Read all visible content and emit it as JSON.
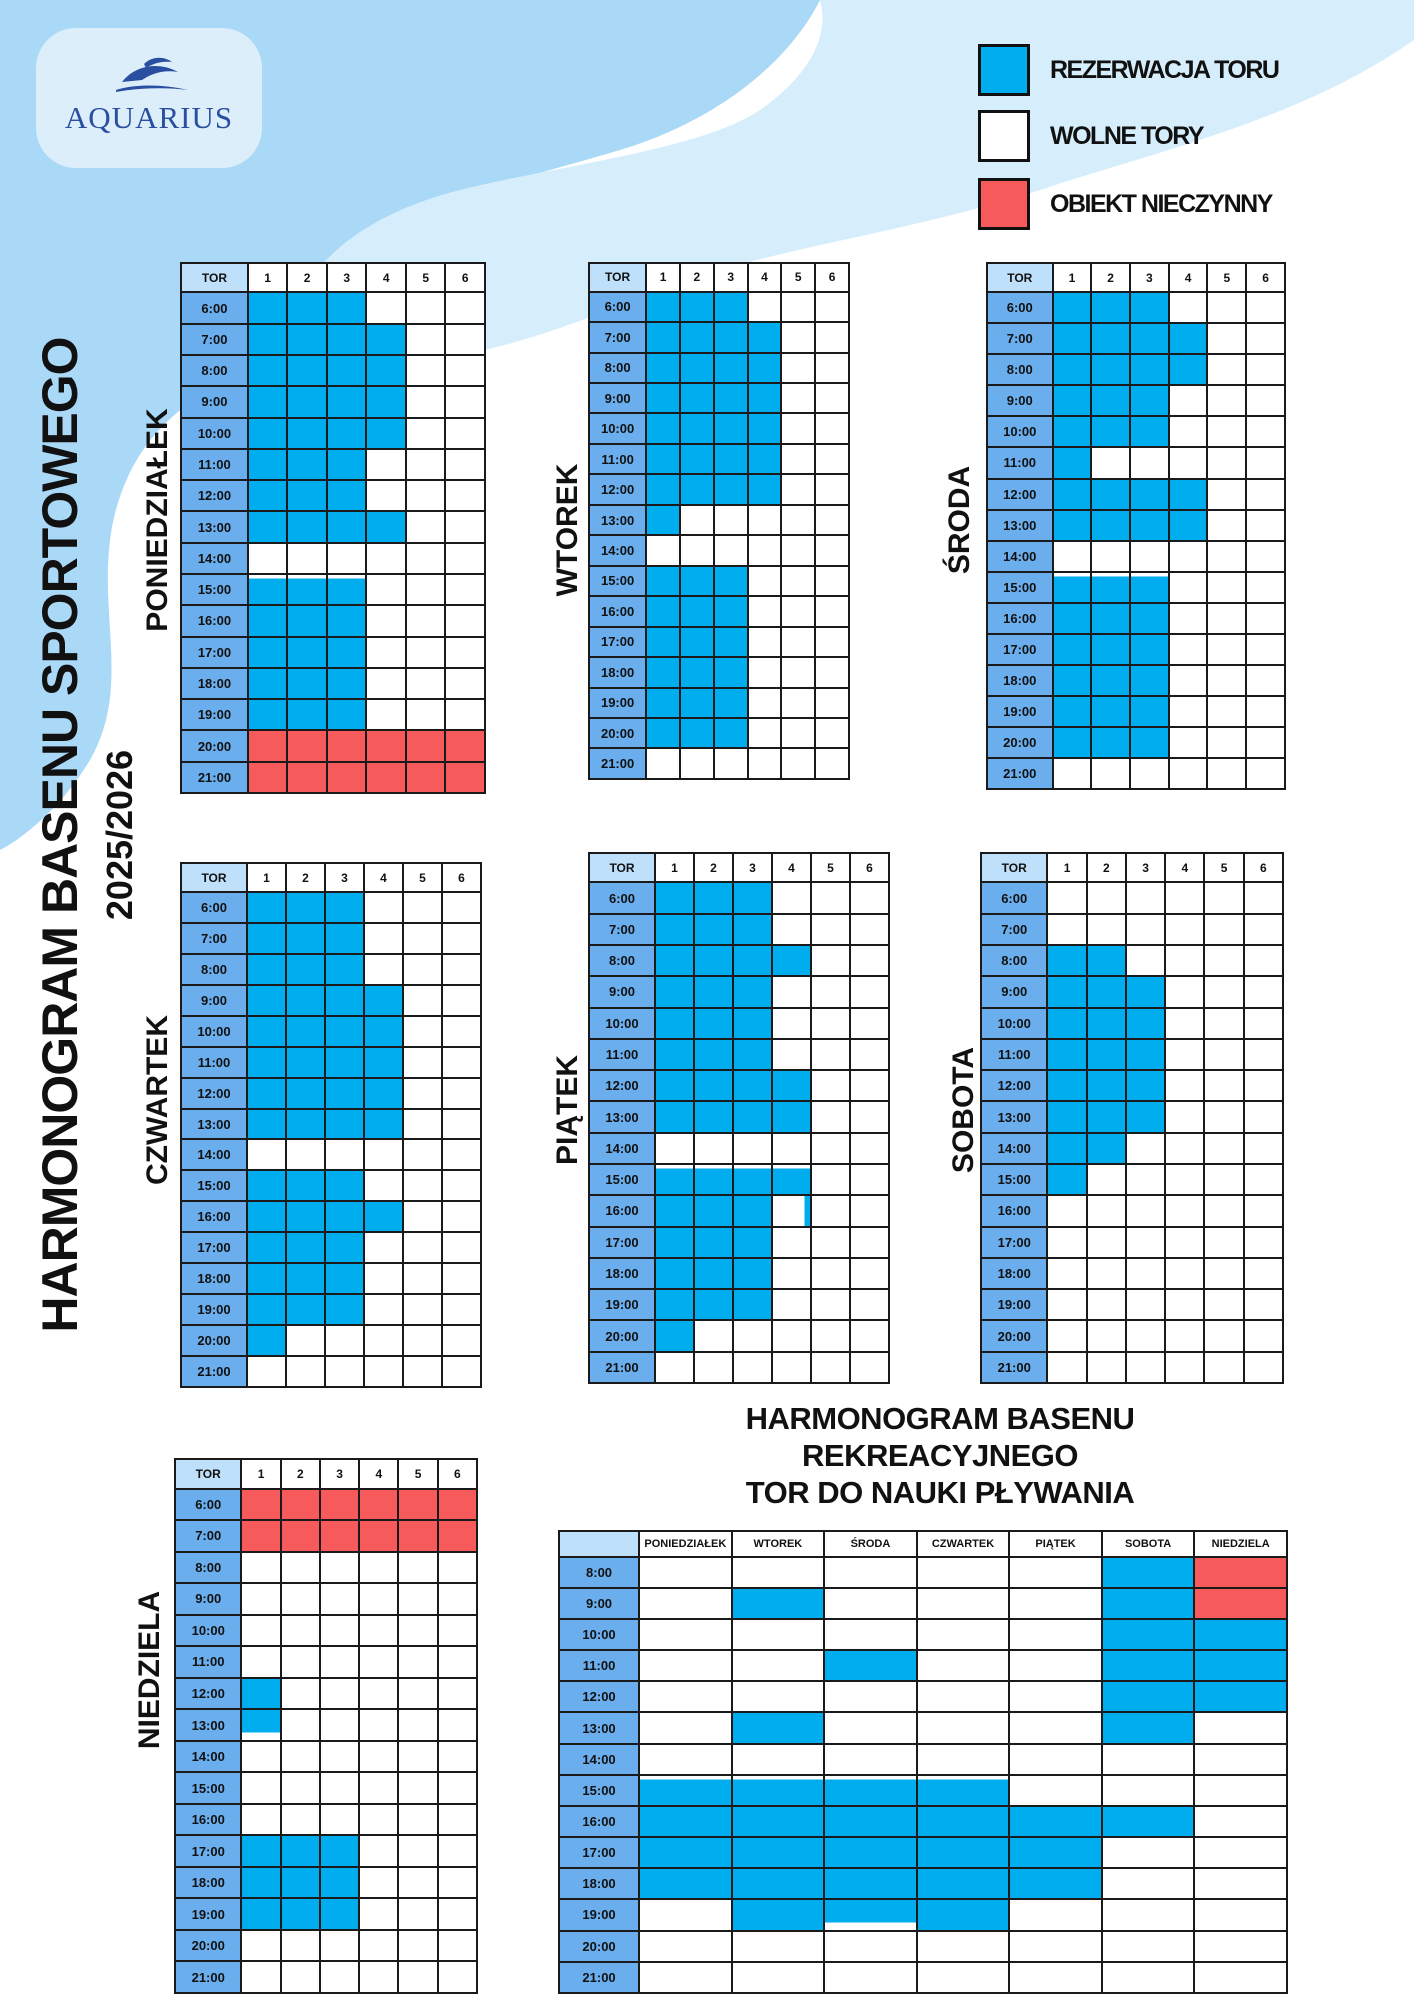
{
  "logo": {
    "text": "AQUARIUS"
  },
  "legend": [
    {
      "label": "REZERWACJA TORU",
      "color": "#00aeef"
    },
    {
      "label": "WOLNE TORY",
      "color": "#ffffff"
    },
    {
      "label": "OBIEKT NIECZYNNY",
      "color": "#f75a5a"
    }
  ],
  "title": {
    "line1": "HARMONOGRAM  BASENU SPORTOWEGO",
    "line2": "2025/2026"
  },
  "grid_header": {
    "corner": "TOR",
    "lanes": [
      "1",
      "2",
      "3",
      "4",
      "5",
      "6"
    ]
  },
  "schedules": [
    {
      "day": "PONIEDZIAŁEK",
      "times": [
        "6:00",
        "7:00",
        "8:00",
        "9:00",
        "10:00",
        "11:00",
        "12:00",
        "13:00",
        "14:00",
        "15:00",
        "16:00",
        "17:00",
        "18:00",
        "19:00",
        "20:00",
        "21:00"
      ],
      "rows": [
        "BBBW..",
        "BBBB..",
        "BBBB..",
        "BBBB..",
        "BBBB..",
        "BBB...",
        "BBB...",
        "BBBB..",
        "......",
        "PPP...",
        "BBB...",
        "BBB...",
        "BBB...",
        "BBB...",
        "RRRRRR",
        "RRRRRR"
      ]
    },
    {
      "day": "WTOREK",
      "times": [
        "6:00",
        "7:00",
        "8:00",
        "9:00",
        "10:00",
        "11:00",
        "12:00",
        "13:00",
        "14:00",
        "15:00",
        "16:00",
        "17:00",
        "18:00",
        "19:00",
        "20:00",
        "21:00"
      ],
      "rows": [
        "BBB...",
        "BBBB..",
        "BBBB..",
        "BBBB..",
        "BBBB..",
        "BBBB..",
        "BBBB..",
        "B.....",
        "......",
        "BBB...",
        "BBB...",
        "BBB...",
        "BBB...",
        "BBB...",
        "BBB...",
        "......"
      ]
    },
    {
      "day": "ŚRODA",
      "times": [
        "6:00",
        "7:00",
        "8:00",
        "9:00",
        "10:00",
        "11:00",
        "12:00",
        "13:00",
        "14:00",
        "15:00",
        "16:00",
        "17:00",
        "18:00",
        "19:00",
        "20:00",
        "21:00"
      ],
      "rows": [
        "BBB...",
        "BBBB..",
        "BBBB..",
        "BBB...",
        "BBB...",
        "B.....",
        "BBBB..",
        "BBBB..",
        "......",
        "PPP...",
        "BBB...",
        "BBB...",
        "BBB...",
        "BBB...",
        "BBB...",
        "......"
      ]
    },
    {
      "day": "CZWARTEK",
      "times": [
        "6:00",
        "7:00",
        "8:00",
        "9:00",
        "10:00",
        "11:00",
        "12:00",
        "13:00",
        "14:00",
        "15:00",
        "16:00",
        "17:00",
        "18:00",
        "19:00",
        "20:00",
        "21:00"
      ],
      "rows": [
        "BBB...",
        "BBB...",
        "BBB...",
        "BBBB..",
        "BBBB..",
        "BBBB..",
        "BBBB..",
        "BBBB..",
        "......",
        "BBB...",
        "BBBB..",
        "BBB...",
        "BBB...",
        "BBB...",
        "B.....",
        "......"
      ]
    },
    {
      "day": "PIĄTEK",
      "times": [
        "6:00",
        "7:00",
        "8:00",
        "9:00",
        "10:00",
        "11:00",
        "12:00",
        "13:00",
        "14:00",
        "15:00",
        "16:00",
        "17:00",
        "18:00",
        "19:00",
        "20:00",
        "21:00"
      ],
      "rows": [
        "BBB...",
        "BBB...",
        "BBBB..",
        "BBB...",
        "BBB...",
        "BBB...",
        "BBBB..",
        "BBBB..",
        "......",
        "PPPP..",
        "BBBS..",
        "BBB...",
        "BBB...",
        "BBB...",
        "B.....",
        "......"
      ]
    },
    {
      "day": "SOBOTA",
      "times": [
        "6:00",
        "7:00",
        "8:00",
        "9:00",
        "10:00",
        "11:00",
        "12:00",
        "13:00",
        "14:00",
        "15:00",
        "16:00",
        "17:00",
        "18:00",
        "19:00",
        "20:00",
        "21:00"
      ],
      "rows": [
        "......",
        "......",
        "BB....",
        "BBB...",
        "BBB...",
        "BBB...",
        "BBB...",
        "BBB...",
        "BB....",
        "B.....",
        "......",
        "......",
        "......",
        "......",
        "......",
        "......"
      ]
    },
    {
      "day": "NIEDZIELA",
      "times": [
        "6:00",
        "7:00",
        "8:00",
        "9:00",
        "10:00",
        "11:00",
        "12:00",
        "13:00",
        "14:00",
        "15:00",
        "16:00",
        "17:00",
        "18:00",
        "19:00",
        "20:00",
        "21:00"
      ],
      "rows": [
        "RRRRRR",
        "RRRRRR",
        "......",
        "......",
        "......",
        "......",
        "B.....",
        "Q.....",
        "......",
        "......",
        "......",
        "BBB...",
        "BBB...",
        "BBB...",
        "......",
        "......"
      ]
    }
  ],
  "recreational": {
    "title": [
      "HARMONOGRAM BASENU",
      "REKREACYJNEGO",
      "TOR DO NAUKI PŁYWANIA"
    ],
    "days": [
      "PONIEDZIAŁEK",
      "WTOREK",
      "ŚRODA",
      "CZWARTEK",
      "PIĄTEK",
      "SOBOTA",
      "NIEDZIELA"
    ],
    "times": [
      "8:00",
      "9:00",
      "10:00",
      "11:00",
      "12:00",
      "13:00",
      "14:00",
      "15:00",
      "16:00",
      "17:00",
      "18:00",
      "19:00",
      "20:00",
      "21:00"
    ],
    "rows": [
      ".....BR",
      ".B...BR",
      ".....BB",
      "..B..BB",
      ".....BB",
      ".B...B.",
      ".......",
      "PPPP...",
      "BBBBBB.",
      "BBBBB..",
      "BBBBB..",
      ".BUB...",
      ".......",
      "......."
    ]
  }
}
